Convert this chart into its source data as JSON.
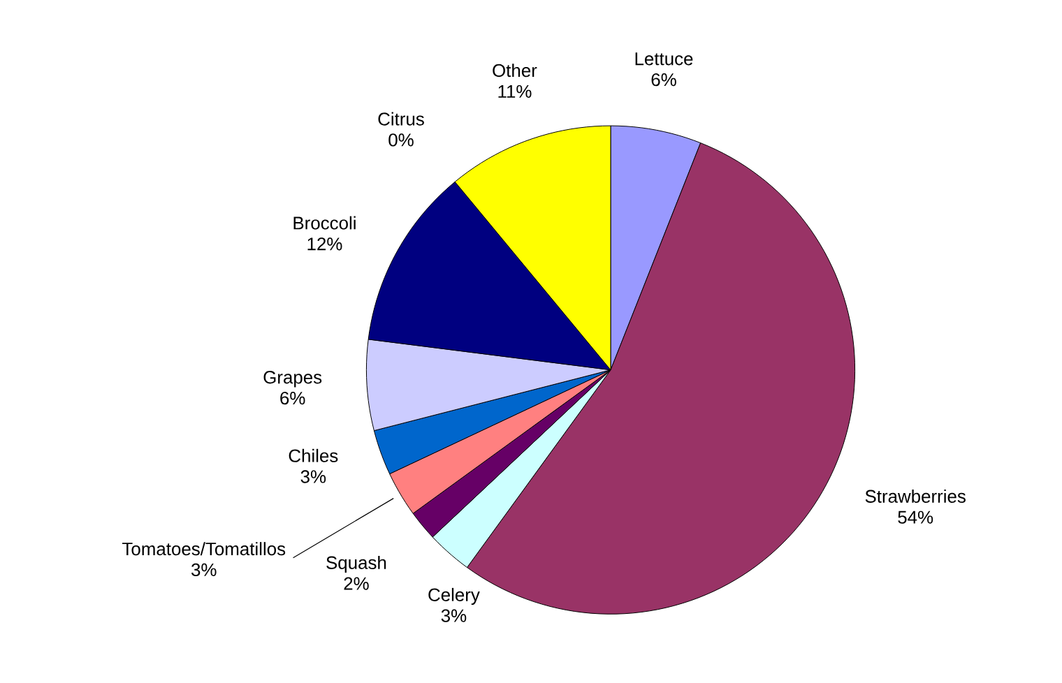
{
  "chart_data": {
    "type": "pie",
    "categories": [
      "Lettuce",
      "Strawberries",
      "Celery",
      "Squash",
      "Tomatoes/Tomatillos",
      "Chiles",
      "Grapes",
      "Broccoli",
      "Citrus",
      "Other"
    ],
    "values": [
      6,
      54,
      3,
      2,
      3,
      3,
      6,
      12,
      0,
      11
    ],
    "value_labels": [
      "6%",
      "54%",
      "3%",
      "2%",
      "3%",
      "3%",
      "6%",
      "12%",
      "0%",
      "11%"
    ],
    "legend": false,
    "colors": [
      "#9999ff",
      "#993366",
      "#ccffff",
      "#660066",
      "#ff8080",
      "#0066cc",
      "#ccccff",
      "#000080",
      "#993300",
      "#ffff00"
    ]
  }
}
